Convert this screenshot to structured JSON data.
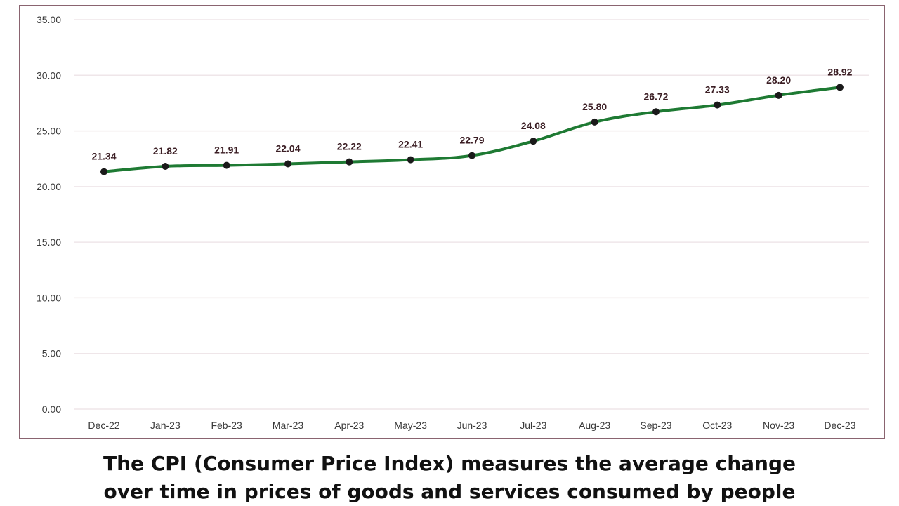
{
  "caption": {
    "line1": "The CPI (Consumer Price Index) measures the average change",
    "line2": "over time in prices of goods and services consumed by people"
  },
  "chart_data": {
    "type": "line",
    "title": "",
    "xlabel": "",
    "ylabel": "",
    "categories": [
      "Dec-22",
      "Jan-23",
      "Feb-23",
      "Mar-23",
      "Apr-23",
      "May-23",
      "Jun-23",
      "Jul-23",
      "Aug-23",
      "Sep-23",
      "Oct-23",
      "Nov-23",
      "Dec-23"
    ],
    "series": [
      {
        "values": [
          21.34,
          21.82,
          21.91,
          22.04,
          22.22,
          22.41,
          22.79,
          24.08,
          25.8,
          26.72,
          27.33,
          28.2,
          28.92
        ]
      }
    ],
    "data_labels": [
      "21.34",
      "21.82",
      "21.91",
      "22.04",
      "22.22",
      "22.41",
      "22.79",
      "24.08",
      "25.80",
      "26.72",
      "27.33",
      "28.20",
      "28.92"
    ],
    "ylim": [
      0,
      35
    ],
    "y_ticks": [
      "0.00",
      "5.00",
      "10.00",
      "15.00",
      "20.00",
      "25.00",
      "30.00",
      "35.00"
    ],
    "grid": true,
    "legend": "none",
    "colors": {
      "line": "#1e7a33",
      "marker": "#1a1a1a",
      "grid": "#efe6e9",
      "frame": "#8a6470",
      "text": "#3a3a3a",
      "label": "#3b1e24"
    }
  }
}
